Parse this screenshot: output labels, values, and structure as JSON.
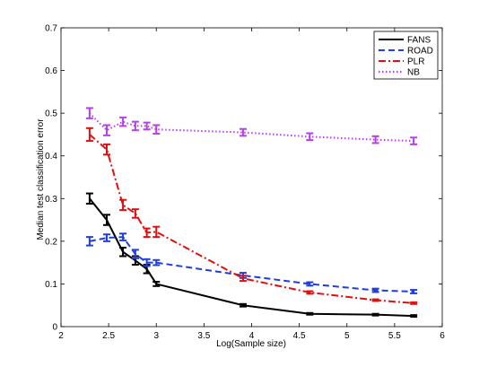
{
  "chart_data": {
    "type": "line",
    "title": "",
    "xlabel": "Log(Sample size)",
    "ylabel": "Median test classification error",
    "xlim": [
      2,
      6
    ],
    "ylim": [
      0,
      0.7
    ],
    "xticks": [
      "2",
      "2.5",
      "3",
      "3.5",
      "4",
      "4.5",
      "5",
      "5.5",
      "6"
    ],
    "yticks": [
      "0",
      "0.1",
      "0.2",
      "0.3",
      "0.4",
      "0.5",
      "0.6",
      "0.7"
    ],
    "grid": false,
    "legend_position": "top-right",
    "series": [
      {
        "name": "FANS",
        "color": "#000000",
        "line_style": "solid",
        "x": [
          2.3,
          2.48,
          2.65,
          2.78,
          2.9,
          3.0,
          3.91,
          4.61,
          5.3,
          5.7
        ],
        "y": [
          0.3,
          0.25,
          0.175,
          0.155,
          0.135,
          0.1,
          0.05,
          0.03,
          0.028,
          0.025
        ],
        "err": [
          0.012,
          0.012,
          0.01,
          0.01,
          0.01,
          0.005,
          0.003,
          0.002,
          0.002,
          0.002
        ]
      },
      {
        "name": "ROAD",
        "color": "#1f3fe0",
        "line_style": "dashed",
        "x": [
          2.3,
          2.48,
          2.65,
          2.78,
          2.9,
          3.0,
          3.91,
          4.61,
          5.3,
          5.7
        ],
        "y": [
          0.2,
          0.208,
          0.21,
          0.17,
          0.15,
          0.15,
          0.12,
          0.1,
          0.085,
          0.082
        ],
        "err": [
          0.01,
          0.008,
          0.008,
          0.01,
          0.008,
          0.006,
          0.006,
          0.004,
          0.004,
          0.004
        ]
      },
      {
        "name": "PLR",
        "color": "#e01010",
        "line_style": "dashdot",
        "x": [
          2.3,
          2.48,
          2.65,
          2.78,
          2.9,
          3.0,
          3.91,
          4.61,
          5.3,
          5.7
        ],
        "y": [
          0.45,
          0.415,
          0.285,
          0.265,
          0.22,
          0.222,
          0.113,
          0.08,
          0.062,
          0.055
        ],
        "err": [
          0.015,
          0.012,
          0.012,
          0.01,
          0.01,
          0.012,
          0.006,
          0.003,
          0.002,
          0.002
        ]
      },
      {
        "name": "NB",
        "color": "#b540e8",
        "line_style": "dotted",
        "x": [
          2.3,
          2.48,
          2.65,
          2.78,
          2.9,
          3.0,
          3.91,
          4.61,
          5.3,
          5.7
        ],
        "y": [
          0.5,
          0.46,
          0.48,
          0.47,
          0.47,
          0.462,
          0.455,
          0.445,
          0.438,
          0.435
        ],
        "err": [
          0.012,
          0.012,
          0.01,
          0.01,
          0.008,
          0.01,
          0.008,
          0.008,
          0.008,
          0.008
        ]
      }
    ]
  }
}
